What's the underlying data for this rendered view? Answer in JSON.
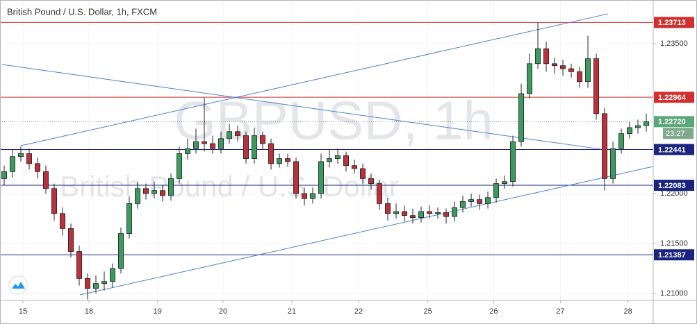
{
  "chart_data": {
    "type": "candlestick",
    "title": "British Pound / U.S. Dollar, 1h, FXCM",
    "watermark": "GBPUSD, 1h",
    "watermark_subtitle": "British Pound / U.S. Dollar",
    "up_color": "#3c9a5f",
    "down_color": "#b8313b",
    "grid": true,
    "xlim": [
      0,
      78.33
    ],
    "ylim": [
      1.209306,
      1.239375
    ],
    "xticks": [
      {
        "value": 2.75,
        "label": "15"
      },
      {
        "value": 10.67,
        "label": "18"
      },
      {
        "value": 18.9,
        "label": "19"
      },
      {
        "value": 26.75,
        "label": "20"
      },
      {
        "value": 35,
        "label": "21"
      },
      {
        "value": 43,
        "label": "22"
      },
      {
        "value": 51.3,
        "label": "25"
      },
      {
        "value": 59.2,
        "label": "26"
      },
      {
        "value": 67.2,
        "label": "27"
      },
      {
        "value": 75.3,
        "label": "28"
      }
    ],
    "yticks": [
      {
        "value": 1.21,
        "label": "1.21000"
      },
      {
        "value": 1.215,
        "label": "1.21500"
      },
      {
        "value": 1.22,
        "label": "1.22000"
      },
      {
        "value": 1.235,
        "label": "1.23500"
      }
    ],
    "open": [
      1.2215,
      1.2222,
      1.2237,
      1.224,
      1.223,
      1.2222,
      1.2205,
      1.218,
      1.2165,
      1.2142,
      1.2115,
      1.2105,
      1.211,
      1.2112,
      1.2125,
      1.216,
      1.219,
      1.2205,
      1.22,
      1.2203,
      1.2198,
      1.2215,
      1.224,
      1.2245,
      1.2252,
      1.225,
      1.2245,
      1.2255,
      1.2262,
      1.2258,
      1.2235,
      1.2258,
      1.225,
      1.223,
      1.2235,
      1.2232,
      1.22,
      1.2195,
      1.22,
      1.2232,
      1.2235,
      1.2238,
      1.2228,
      1.2225,
      1.2215,
      1.221,
      1.219,
      1.218,
      1.2182,
      1.2178,
      1.2176,
      1.2182,
      1.218,
      1.2181,
      1.2177,
      1.2186,
      1.2192,
      1.2194,
      1.219,
      1.2196,
      1.221,
      1.2212,
      1.2252,
      1.23,
      1.233,
      1.2345,
      1.233,
      1.2328,
      1.2325,
      1.2322,
      1.2312,
      1.2335,
      1.228,
      1.2215,
      1.2245,
      1.226,
      1.2266,
      1.2268
    ],
    "high": [
      1.2228,
      1.2244,
      1.2247,
      1.2245,
      1.2236,
      1.2228,
      1.221,
      1.2186,
      1.217,
      1.2148,
      1.212,
      1.2118,
      1.2122,
      1.213,
      1.2166,
      1.2197,
      1.2212,
      1.221,
      1.2212,
      1.2208,
      1.222,
      1.2247,
      1.2255,
      1.2265,
      1.2296,
      1.2258,
      1.2262,
      1.227,
      1.2268,
      1.2262,
      1.2266,
      1.2262,
      1.2255,
      1.224,
      1.224,
      1.2236,
      1.2206,
      1.2206,
      1.224,
      1.2244,
      1.2245,
      1.2242,
      1.2234,
      1.223,
      1.222,
      1.2214,
      1.2196,
      1.219,
      1.2188,
      1.2185,
      1.2187,
      1.2188,
      1.2186,
      1.2185,
      1.2192,
      1.2198,
      1.22,
      1.2199,
      1.2202,
      1.2215,
      1.2218,
      1.2258,
      1.231,
      1.234,
      1.2371,
      1.2352,
      1.2336,
      1.2334,
      1.233,
      1.2327,
      1.2358,
      1.234,
      1.2286,
      1.2252,
      1.2265,
      1.2272,
      1.2274,
      1.228
    ],
    "low": [
      1.2208,
      1.2216,
      1.2232,
      1.2224,
      1.2215,
      1.22,
      1.2173,
      1.2158,
      1.2136,
      1.2108,
      1.2094,
      1.21,
      1.2103,
      1.2106,
      1.212,
      1.2155,
      1.2185,
      1.2194,
      1.2195,
      1.2192,
      1.2193,
      1.221,
      1.2234,
      1.224,
      1.2242,
      1.224,
      1.224,
      1.225,
      1.2252,
      1.223,
      1.223,
      1.2244,
      1.2224,
      1.2226,
      1.2227,
      1.2195,
      1.2188,
      1.219,
      1.2195,
      1.2226,
      1.223,
      1.2222,
      1.222,
      1.221,
      1.2204,
      1.2184,
      1.2173,
      1.2175,
      1.2172,
      1.217,
      1.2171,
      1.2175,
      1.2175,
      1.217,
      1.2172,
      1.2181,
      1.2187,
      1.2184,
      1.2185,
      1.2191,
      1.2205,
      1.2207,
      1.2247,
      1.2295,
      1.2325,
      1.2322,
      1.232,
      1.2318,
      1.2316,
      1.2306,
      1.2306,
      1.2274,
      1.2203,
      1.221,
      1.224,
      1.2255,
      1.226,
      1.2262
    ],
    "close": [
      1.2222,
      1.2237,
      1.224,
      1.223,
      1.2222,
      1.2205,
      1.218,
      1.2165,
      1.2142,
      1.2115,
      1.2105,
      1.211,
      1.2112,
      1.2125,
      1.216,
      1.219,
      1.2205,
      1.22,
      1.2203,
      1.2198,
      1.2215,
      1.224,
      1.2245,
      1.2252,
      1.225,
      1.2245,
      1.2255,
      1.2262,
      1.2258,
      1.2235,
      1.2258,
      1.225,
      1.223,
      1.2235,
      1.2232,
      1.22,
      1.2195,
      1.22,
      1.2232,
      1.2235,
      1.2238,
      1.2228,
      1.2225,
      1.2215,
      1.221,
      1.219,
      1.218,
      1.2182,
      1.2178,
      1.2176,
      1.2182,
      1.218,
      1.2181,
      1.2177,
      1.2186,
      1.2192,
      1.2194,
      1.219,
      1.2196,
      1.221,
      1.2212,
      1.2252,
      1.23,
      1.233,
      1.2345,
      1.233,
      1.2328,
      1.2325,
      1.2322,
      1.2312,
      1.2335,
      1.228,
      1.2215,
      1.2245,
      1.226,
      1.2266,
      1.2268,
      1.2272
    ],
    "levels": [
      {
        "value": 1.23713,
        "color": "#d32f2f"
      },
      {
        "value": 1.22964,
        "color": "#d32f2f"
      },
      {
        "value": 1.22441,
        "color": "#1a237e"
      },
      {
        "value": 1.22083,
        "color": "#1a237e"
      },
      {
        "value": 1.21387,
        "color": "#1a237e"
      }
    ],
    "last_price": {
      "value": 1.2272,
      "label": "1.22720",
      "color": "#5aa77a"
    },
    "countdown": "23:27",
    "trendline_color": "#4a7fd0",
    "trendlines": [
      {
        "x": [
          2.5,
          72.9
        ],
        "y": [
          1.22479,
          1.23799
        ]
      },
      {
        "x": [
          9.6,
          78.3
        ],
        "y": [
          1.20986,
          1.22271
        ]
      },
      {
        "x": [
          0.25,
          72.1
        ],
        "y": [
          1.23292,
          1.22444
        ]
      }
    ]
  }
}
